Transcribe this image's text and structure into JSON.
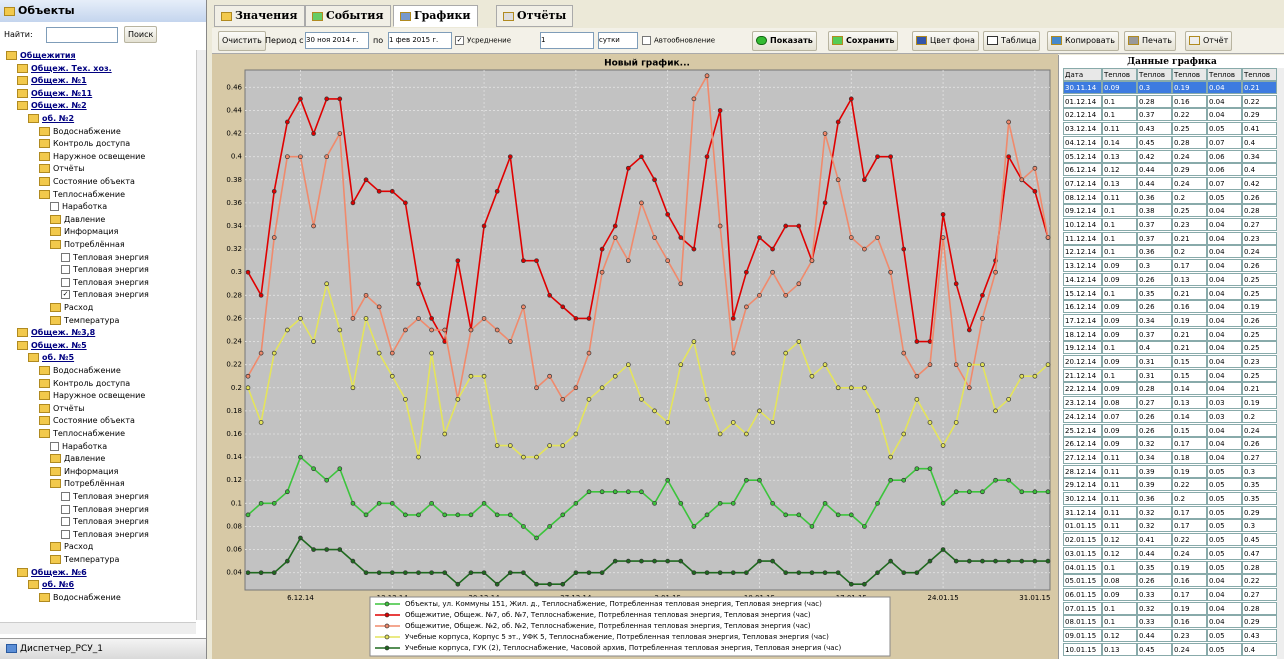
{
  "sidebar": {
    "title": "Объекты",
    "search_label": "Найти:",
    "search_button": "Поиск",
    "footer": "Диспетчер_РСУ_1",
    "tree": [
      {
        "label": "Общежития",
        "children": [
          {
            "label": "Общеж. Тех. хоз."
          },
          {
            "label": "Общеж. №1"
          },
          {
            "label": "Общеж. №11"
          },
          {
            "label": "Общеж. №2",
            "children": [
              {
                "label": "об. №2",
                "children": [
                  {
                    "label": "Водоснабжение"
                  },
                  {
                    "label": "Контроль доступа"
                  },
                  {
                    "label": "Наружное освещение"
                  },
                  {
                    "label": "Отчёты"
                  },
                  {
                    "label": "Состояние объекта"
                  },
                  {
                    "label": "Теплоснабжение",
                    "children": [
                      {
                        "label": "Наработка",
                        "checked": false
                      },
                      {
                        "label": "Давление"
                      },
                      {
                        "label": "Информация"
                      },
                      {
                        "label": "Потреблённая",
                        "children": [
                          {
                            "label": "Тепловая энергия",
                            "checked": false
                          },
                          {
                            "label": "Тепловая энергия",
                            "checked": false
                          },
                          {
                            "label": "Тепловая энергия",
                            "checked": false
                          },
                          {
                            "label": "Тепловая энергия",
                            "checked": true
                          }
                        ]
                      },
                      {
                        "label": "Расход"
                      },
                      {
                        "label": "Температура"
                      }
                    ]
                  }
                ]
              }
            ]
          },
          {
            "label": "Общеж. №3,8"
          },
          {
            "label": "Общеж. №5",
            "children": [
              {
                "label": "об. №5",
                "children": [
                  {
                    "label": "Водоснабжение"
                  },
                  {
                    "label": "Контроль доступа"
                  },
                  {
                    "label": "Наружное освещение"
                  },
                  {
                    "label": "Отчёты"
                  },
                  {
                    "label": "Состояние объекта"
                  },
                  {
                    "label": "Теплоснабжение",
                    "children": [
                      {
                        "label": "Наработка",
                        "checked": false
                      },
                      {
                        "label": "Давление"
                      },
                      {
                        "label": "Информация"
                      },
                      {
                        "label": "Потреблённая",
                        "children": [
                          {
                            "label": "Тепловая энергия",
                            "checked": false
                          },
                          {
                            "label": "Тепловая энергия",
                            "checked": false
                          },
                          {
                            "label": "Тепловая энергия",
                            "checked": false
                          },
                          {
                            "label": "Тепловая энергия",
                            "checked": false
                          }
                        ]
                      },
                      {
                        "label": "Расход"
                      },
                      {
                        "label": "Температура"
                      }
                    ]
                  }
                ]
              }
            ]
          },
          {
            "label": "Общеж. №6",
            "children": [
              {
                "label": "об. №6",
                "children": [
                  {
                    "label": "Водоснабжение"
                  }
                ]
              }
            ]
          }
        ]
      }
    ]
  },
  "tabs": [
    "Значения",
    "События",
    "Графики",
    "Отчёты"
  ],
  "toolbar": {
    "clear": "Очистить",
    "period_from": "Период с",
    "date_from": "30 ноя 2014 г.",
    "period_to": "по",
    "date_to": "1 фев 2015 г.",
    "averaging": "Усреднение",
    "avg_count": "1",
    "avg_unit": "сутки",
    "autoupdate": "Автообновление",
    "show": "Показать",
    "save": "Сохранить",
    "background": "Цвет фона",
    "table": "Таблица",
    "copy": "Копировать",
    "print": "Печать",
    "report": "Отчёт"
  },
  "chart_data": {
    "type": "line",
    "title": "Новый график...",
    "categories": [
      null,
      null,
      null,
      null,
      "6.12.14",
      null,
      null,
      null,
      null,
      null,
      null,
      "13.12.14",
      null,
      null,
      null,
      null,
      null,
      null,
      "20.12.14",
      null,
      null,
      null,
      null,
      null,
      null,
      "27.12.14",
      null,
      null,
      null,
      null,
      null,
      null,
      "3.01.15",
      null,
      null,
      null,
      null,
      null,
      null,
      "10.01.15",
      null,
      null,
      null,
      null,
      null,
      null,
      "17.01.15",
      null,
      null,
      null,
      null,
      null,
      null,
      "24.01.15",
      null,
      null,
      null,
      null,
      null,
      null,
      "31.01.15",
      null
    ],
    "ylim": [
      0.025,
      0.475
    ],
    "yticks": [
      0.04,
      0.06,
      0.08,
      0.1,
      0.12,
      0.14,
      0.16,
      0.18,
      0.2,
      0.22,
      0.24,
      0.26,
      0.28,
      0.3,
      0.32,
      0.34,
      0.36,
      0.38,
      0.4,
      0.42,
      0.44,
      0.46
    ],
    "grid": true,
    "series": [
      {
        "name": "Объекты, ул. Коммуны 151, Жил. д., Теплоснабжение, Потребленная тепловая энергия, Тепловая энергия (час)",
        "color": "#3cc43c",
        "values": [
          0.09,
          0.1,
          0.1,
          0.11,
          0.14,
          0.13,
          0.12,
          0.13,
          0.1,
          0.09,
          0.1,
          0.1,
          0.09,
          0.09,
          0.1,
          0.09,
          0.09,
          0.09,
          0.1,
          0.09,
          0.09,
          0.08,
          0.07,
          0.08,
          0.09,
          0.1,
          0.11,
          0.11,
          0.11,
          0.11,
          0.11,
          0.1,
          0.12,
          0.1,
          0.08,
          0.09,
          0.1,
          0.1,
          0.12,
          0.12,
          0.1,
          0.09,
          0.09,
          0.08,
          0.1,
          0.09,
          0.09,
          0.08,
          0.1,
          0.12,
          0.12,
          0.13,
          0.13,
          0.1,
          0.11,
          0.11,
          0.11,
          0.12,
          0.12,
          0.11,
          0.11,
          0.11
        ]
      },
      {
        "name": "Общежитие, Общеж. №7, об. №7, Теплоснабжение, Потребленная тепловая энергия, Тепловая энергия (час)",
        "color": "#e00000",
        "values": [
          0.3,
          0.28,
          0.37,
          0.43,
          0.45,
          0.42,
          0.45,
          0.45,
          0.36,
          0.38,
          0.37,
          0.37,
          0.36,
          0.29,
          0.26,
          0.24,
          0.31,
          0.25,
          0.34,
          0.37,
          0.4,
          0.31,
          0.31,
          0.28,
          0.27,
          0.26,
          0.26,
          0.32,
          0.34,
          0.39,
          0.4,
          0.38,
          0.35,
          0.33,
          0.32,
          0.4,
          0.44,
          0.26,
          0.3,
          0.33,
          0.32,
          0.34,
          0.34,
          0.31,
          0.36,
          0.43,
          0.45,
          0.38,
          0.4,
          0.4,
          0.32,
          0.24,
          0.24,
          0.35,
          0.29,
          0.25,
          0.28,
          0.31,
          0.4,
          0.38,
          0.37,
          0.33
        ]
      },
      {
        "name": "Общежитие, Общеж. №2, об. №2, Теплоснабжение, Потребленная тепловая энергия, Тепловая энергия (час)",
        "color": "#f08a6c",
        "values": [
          0.21,
          0.23,
          0.33,
          0.4,
          0.4,
          0.34,
          0.4,
          0.42,
          0.26,
          0.28,
          0.27,
          0.23,
          0.25,
          0.26,
          0.25,
          0.25,
          0.19,
          0.25,
          0.26,
          0.25,
          0.24,
          0.27,
          0.2,
          0.21,
          0.19,
          0.2,
          0.23,
          0.3,
          0.33,
          0.31,
          0.36,
          0.33,
          0.31,
          0.29,
          0.45,
          0.47,
          0.34,
          0.23,
          0.27,
          0.28,
          0.3,
          0.28,
          0.29,
          0.31,
          0.42,
          0.38,
          0.33,
          0.32,
          0.33,
          0.3,
          0.23,
          0.21,
          0.22,
          0.33,
          0.22,
          0.2,
          0.26,
          0.3,
          0.43,
          0.38,
          0.39,
          0.33
        ]
      },
      {
        "name": "Учебные корпуса, Корпус 5 эт., УФК 5, Теплоснабжение, Потребленная тепловая энергия, Тепловая энергия (час)",
        "color": "#e4e45c",
        "values": [
          0.2,
          0.17,
          0.23,
          0.25,
          0.26,
          0.24,
          0.29,
          0.25,
          0.2,
          0.26,
          0.23,
          0.21,
          0.19,
          0.14,
          0.23,
          0.16,
          0.19,
          0.21,
          0.21,
          0.15,
          0.15,
          0.14,
          0.14,
          0.15,
          0.15,
          0.16,
          0.19,
          0.2,
          0.21,
          0.22,
          0.19,
          0.18,
          0.17,
          0.22,
          0.24,
          0.19,
          0.16,
          0.17,
          0.16,
          0.18,
          0.17,
          0.23,
          0.24,
          0.21,
          0.22,
          0.2,
          0.2,
          0.2,
          0.18,
          0.14,
          0.16,
          0.19,
          0.17,
          0.15,
          0.17,
          0.22,
          0.22,
          0.18,
          0.19,
          0.21,
          0.21,
          0.22
        ]
      },
      {
        "name": "Учебные корпуса, ГУК (2), Теплоснабжение, Часовой архив, Потребленная тепловая энергия, Тепловая энергия (час)",
        "color": "#1f6a1f",
        "values": [
          0.04,
          0.04,
          0.04,
          0.05,
          0.07,
          0.06,
          0.06,
          0.06,
          0.05,
          0.04,
          0.04,
          0.04,
          0.04,
          0.04,
          0.04,
          0.04,
          0.03,
          0.04,
          0.04,
          0.03,
          0.04,
          0.04,
          0.03,
          0.03,
          0.03,
          0.04,
          0.04,
          0.04,
          0.05,
          0.05,
          0.05,
          0.05,
          0.05,
          0.05,
          0.04,
          0.04,
          0.04,
          0.04,
          0.04,
          0.05,
          0.05,
          0.04,
          0.04,
          0.04,
          0.04,
          0.04,
          0.03,
          0.03,
          0.04,
          0.05,
          0.04,
          0.04,
          0.05,
          0.06,
          0.05,
          0.05,
          0.05,
          0.05,
          0.05,
          0.05,
          0.05,
          0.05
        ]
      }
    ]
  },
  "data_table": {
    "title": "Данные графика",
    "header": [
      "Дата",
      "Теплов",
      "Теплов",
      "Теплов",
      "Теплов",
      "Теплов"
    ],
    "rows": [
      [
        "30.11.14",
        "0.09",
        "0.3",
        "0.19",
        "0.04",
        "0.21"
      ],
      [
        "01.12.14",
        "0.1",
        "0.28",
        "0.16",
        "0.04",
        "0.22"
      ],
      [
        "02.12.14",
        "0.1",
        "0.37",
        "0.22",
        "0.04",
        "0.29"
      ],
      [
        "03.12.14",
        "0.11",
        "0.43",
        "0.25",
        "0.05",
        "0.41"
      ],
      [
        "04.12.14",
        "0.14",
        "0.45",
        "0.28",
        "0.07",
        "0.4"
      ],
      [
        "05.12.14",
        "0.13",
        "0.42",
        "0.24",
        "0.06",
        "0.34"
      ],
      [
        "06.12.14",
        "0.12",
        "0.44",
        "0.29",
        "0.06",
        "0.4"
      ],
      [
        "07.12.14",
        "0.13",
        "0.44",
        "0.24",
        "0.07",
        "0.42"
      ],
      [
        "08.12.14",
        "0.11",
        "0.36",
        "0.2",
        "0.05",
        "0.26"
      ],
      [
        "09.12.14",
        "0.1",
        "0.38",
        "0.25",
        "0.04",
        "0.28"
      ],
      [
        "10.12.14",
        "0.1",
        "0.37",
        "0.23",
        "0.04",
        "0.27"
      ],
      [
        "11.12.14",
        "0.1",
        "0.37",
        "0.21",
        "0.04",
        "0.23"
      ],
      [
        "12.12.14",
        "0.1",
        "0.36",
        "0.2",
        "0.04",
        "0.24"
      ],
      [
        "13.12.14",
        "0.09",
        "0.3",
        "0.17",
        "0.04",
        "0.26"
      ],
      [
        "14.12.14",
        "0.09",
        "0.26",
        "0.13",
        "0.04",
        "0.25"
      ],
      [
        "15.12.14",
        "0.1",
        "0.35",
        "0.21",
        "0.04",
        "0.25"
      ],
      [
        "16.12.14",
        "0.09",
        "0.26",
        "0.16",
        "0.04",
        "0.19"
      ],
      [
        "17.12.14",
        "0.09",
        "0.34",
        "0.19",
        "0.04",
        "0.26"
      ],
      [
        "18.12.14",
        "0.09",
        "0.37",
        "0.21",
        "0.04",
        "0.25"
      ],
      [
        "19.12.14",
        "0.1",
        "0.4",
        "0.21",
        "0.04",
        "0.25"
      ],
      [
        "20.12.14",
        "0.09",
        "0.31",
        "0.15",
        "0.04",
        "0.23"
      ],
      [
        "21.12.14",
        "0.1",
        "0.31",
        "0.15",
        "0.04",
        "0.25"
      ],
      [
        "22.12.14",
        "0.09",
        "0.28",
        "0.14",
        "0.04",
        "0.21"
      ],
      [
        "23.12.14",
        "0.08",
        "0.27",
        "0.13",
        "0.03",
        "0.19"
      ],
      [
        "24.12.14",
        "0.07",
        "0.26",
        "0.14",
        "0.03",
        "0.2"
      ],
      [
        "25.12.14",
        "0.09",
        "0.26",
        "0.15",
        "0.04",
        "0.24"
      ],
      [
        "26.12.14",
        "0.09",
        "0.32",
        "0.17",
        "0.04",
        "0.26"
      ],
      [
        "27.12.14",
        "0.11",
        "0.34",
        "0.18",
        "0.04",
        "0.27"
      ],
      [
        "28.12.14",
        "0.11",
        "0.39",
        "0.19",
        "0.05",
        "0.3"
      ],
      [
        "29.12.14",
        "0.11",
        "0.39",
        "0.22",
        "0.05",
        "0.35"
      ],
      [
        "30.12.14",
        "0.11",
        "0.36",
        "0.2",
        "0.05",
        "0.35"
      ],
      [
        "31.12.14",
        "0.11",
        "0.32",
        "0.17",
        "0.05",
        "0.29"
      ],
      [
        "01.01.15",
        "0.11",
        "0.32",
        "0.17",
        "0.05",
        "0.3"
      ],
      [
        "02.01.15",
        "0.12",
        "0.41",
        "0.22",
        "0.05",
        "0.45"
      ],
      [
        "03.01.15",
        "0.12",
        "0.44",
        "0.24",
        "0.05",
        "0.47"
      ],
      [
        "04.01.15",
        "0.1",
        "0.35",
        "0.19",
        "0.05",
        "0.28"
      ],
      [
        "05.01.15",
        "0.08",
        "0.26",
        "0.16",
        "0.04",
        "0.22"
      ],
      [
        "06.01.15",
        "0.09",
        "0.33",
        "0.17",
        "0.04",
        "0.27"
      ],
      [
        "07.01.15",
        "0.1",
        "0.32",
        "0.19",
        "0.04",
        "0.28"
      ],
      [
        "08.01.15",
        "0.1",
        "0.33",
        "0.16",
        "0.04",
        "0.29"
      ],
      [
        "09.01.15",
        "0.12",
        "0.44",
        "0.23",
        "0.05",
        "0.43"
      ],
      [
        "10.01.15",
        "0.13",
        "0.45",
        "0.24",
        "0.05",
        "0.4"
      ]
    ]
  }
}
